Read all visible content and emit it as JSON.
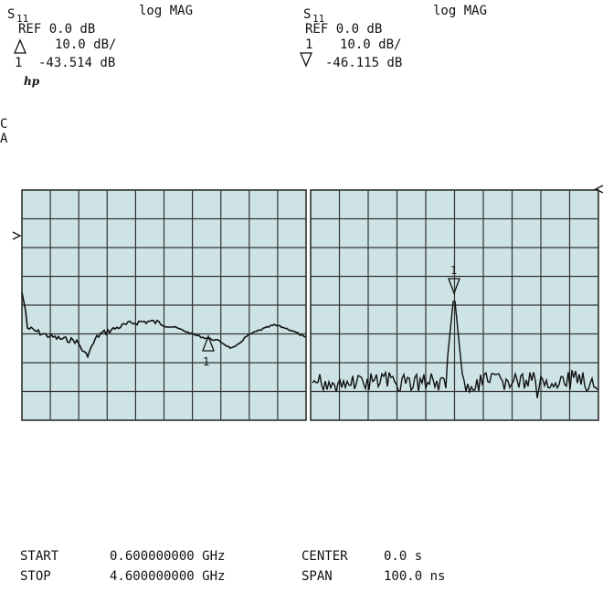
{
  "left_header": {
    "param": "S",
    "param_sub": "11",
    "format": "log MAG",
    "ref": "REF 0.0 dB",
    "scale": "10.0 dB/",
    "marker": "1",
    "marker_value": "-43.514 dB",
    "logo": "hp"
  },
  "right_header": {
    "param": "S",
    "param_sub": "11",
    "format": "log MAG",
    "ref": "REF 0.0 dB",
    "marker": "1",
    "scale": "10.0 dB/",
    "marker_value": "-46.115 dB"
  },
  "side_labels": [
    "C",
    "A"
  ],
  "left_panel": {
    "marker_label": "1"
  },
  "right_panel": {
    "marker_label": "1"
  },
  "footer": {
    "start_label": "START",
    "start_value": "0.600000000 GHz",
    "stop_label": "STOP",
    "stop_value": "4.600000000 GHz",
    "center_label": "CENTER",
    "center_value": "0.0 s",
    "span_label": "SPAN",
    "span_value": "100.0 ns"
  }
}
